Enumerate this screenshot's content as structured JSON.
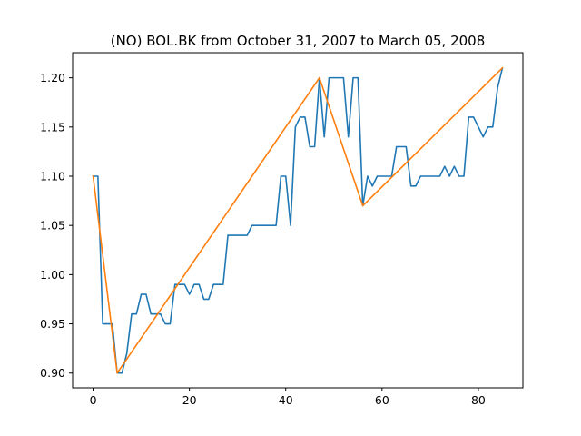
{
  "chart_data": {
    "type": "line",
    "title": "(NO) BOL.BK from October 31, 2007 to March 05, 2008",
    "xlabel": "",
    "ylabel": "",
    "xlim": [
      -4.25,
      89.25
    ],
    "ylim": [
      0.885,
      1.2255
    ],
    "xticks": [
      0,
      20,
      40,
      60,
      80
    ],
    "yticks": [
      0.9,
      0.95,
      1.0,
      1.05,
      1.1,
      1.15,
      1.2
    ],
    "xtick_labels": [
      "0",
      "20",
      "40",
      "60",
      "80"
    ],
    "ytick_labels": [
      "0.90",
      "0.95",
      "1.00",
      "1.05",
      "1.10",
      "1.15",
      "1.20"
    ],
    "grid": false,
    "series": [
      {
        "color": "#1f77b4",
        "x": [
          0,
          1,
          2,
          3,
          4,
          5,
          6,
          7,
          8,
          9,
          10,
          11,
          12,
          13,
          14,
          15,
          16,
          17,
          18,
          19,
          20,
          21,
          22,
          23,
          24,
          25,
          26,
          27,
          28,
          29,
          30,
          31,
          32,
          33,
          34,
          35,
          36,
          37,
          38,
          39,
          40,
          41,
          42,
          43,
          44,
          45,
          46,
          47,
          48,
          49,
          50,
          51,
          52,
          53,
          54,
          55,
          56,
          57,
          58,
          59,
          60,
          61,
          62,
          63,
          64,
          65,
          66,
          67,
          68,
          69,
          70,
          71,
          72,
          73,
          74,
          75,
          76,
          77,
          78,
          79,
          80,
          81,
          82,
          83,
          84,
          85
        ],
        "y": [
          1.1,
          1.1,
          0.95,
          0.95,
          0.95,
          0.9,
          0.9,
          0.92,
          0.96,
          0.96,
          0.98,
          0.98,
          0.96,
          0.96,
          0.96,
          0.95,
          0.95,
          0.99,
          0.99,
          0.99,
          0.98,
          0.99,
          0.99,
          0.975,
          0.975,
          0.99,
          0.99,
          0.99,
          1.04,
          1.04,
          1.04,
          1.04,
          1.04,
          1.05,
          1.05,
          1.05,
          1.05,
          1.05,
          1.05,
          1.1,
          1.1,
          1.05,
          1.15,
          1.16,
          1.16,
          1.13,
          1.13,
          1.2,
          1.14,
          1.2,
          1.2,
          1.2,
          1.2,
          1.14,
          1.2,
          1.2,
          1.07,
          1.1,
          1.09,
          1.1,
          1.1,
          1.1,
          1.1,
          1.13,
          1.13,
          1.13,
          1.09,
          1.09,
          1.1,
          1.1,
          1.1,
          1.1,
          1.1,
          1.11,
          1.1,
          1.11,
          1.1,
          1.1,
          1.16,
          1.16,
          1.15,
          1.14,
          1.15,
          1.15,
          1.19,
          1.21
        ]
      },
      {
        "color": "#ff7f0e",
        "x": [
          0,
          5,
          47,
          56,
          85
        ],
        "y": [
          1.1,
          0.9,
          1.2,
          1.07,
          1.21
        ]
      }
    ]
  }
}
